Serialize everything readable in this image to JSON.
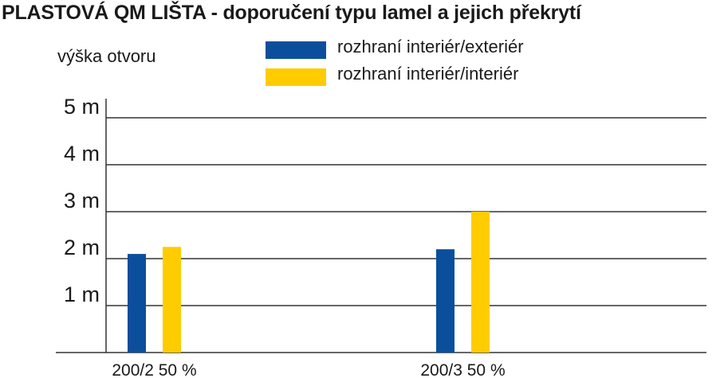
{
  "title": "PLASTOVÁ QM LIŠTA - doporučení typu lamel a jejich překrytí",
  "colors": {
    "series1": "#0b4f9c",
    "series2": "#ffcc00",
    "axis": "#333333",
    "grid": "#333333"
  },
  "chart_data": {
    "type": "bar",
    "title": "PLASTOVÁ QM LIŠTA - doporučení typu lamel a jejich překrytí",
    "ylabel": "výška otvoru",
    "xlabel": "",
    "ylim": [
      0,
      5
    ],
    "yticks": [
      {
        "value": 1,
        "label": "1 m"
      },
      {
        "value": 2,
        "label": "2 m"
      },
      {
        "value": 3,
        "label": "3 m"
      },
      {
        "value": 4,
        "label": "4 m"
      },
      {
        "value": 5,
        "label": "5 m"
      }
    ],
    "grid": true,
    "legend_position": "top",
    "categories": [
      "200/2 50 %",
      "200/3 50 %"
    ],
    "series": [
      {
        "name": "rozhraní interiér/exteriér",
        "values": [
          2.1,
          2.2
        ]
      },
      {
        "name": "rozhraní interiér/interiér",
        "values": [
          2.25,
          3.0
        ]
      }
    ]
  }
}
